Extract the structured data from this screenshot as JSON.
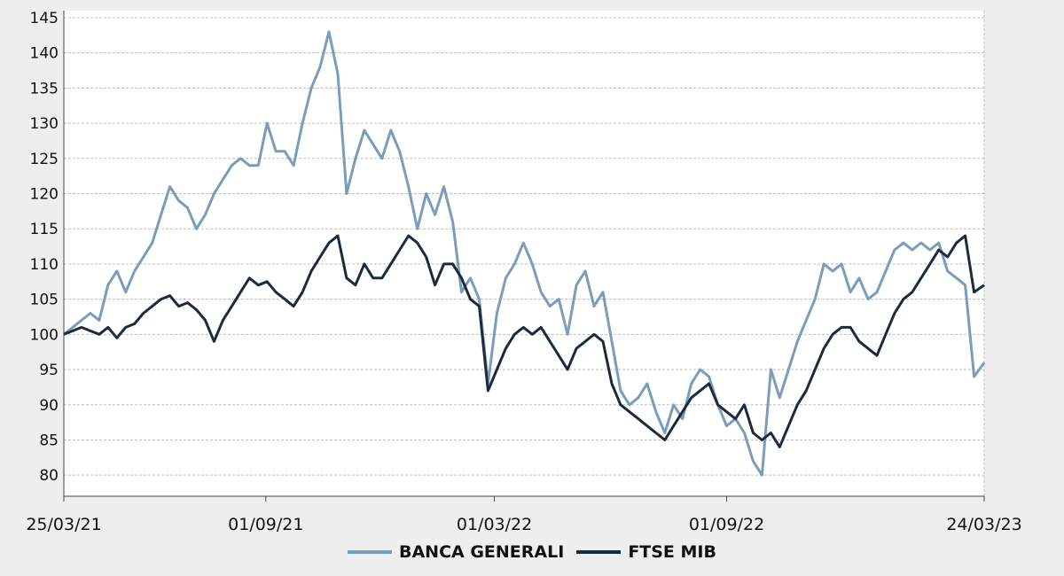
{
  "chart_data": {
    "type": "line",
    "title": "",
    "xlabel": "",
    "ylabel": "",
    "ylim": [
      77,
      146
    ],
    "yticks": [
      80,
      85,
      90,
      95,
      100,
      105,
      110,
      115,
      120,
      125,
      130,
      135,
      140,
      145
    ],
    "xlim": [
      "25/03/21",
      "24/03/23"
    ],
    "xticks": [
      "25/03/21",
      "01/09/21",
      "01/03/22",
      "01/09/22",
      "24/03/23"
    ],
    "grid": true,
    "legend_position": "bottom",
    "series": [
      {
        "name": "BANCA GENERALI",
        "color": "#7b9cba",
        "points": [
          [
            "25/03/21",
            100
          ],
          [
            "01/04/21",
            101
          ],
          [
            "08/04/21",
            102
          ],
          [
            "15/04/21",
            103
          ],
          [
            "22/04/21",
            102
          ],
          [
            "29/04/21",
            107
          ],
          [
            "06/05/21",
            109
          ],
          [
            "13/05/21",
            106
          ],
          [
            "20/05/21",
            109
          ],
          [
            "27/05/21",
            111
          ],
          [
            "03/06/21",
            113
          ],
          [
            "10/06/21",
            117
          ],
          [
            "17/06/21",
            121
          ],
          [
            "24/06/21",
            119
          ],
          [
            "01/07/21",
            118
          ],
          [
            "08/07/21",
            115
          ],
          [
            "15/07/21",
            117
          ],
          [
            "22/07/21",
            120
          ],
          [
            "29/07/21",
            122
          ],
          [
            "05/08/21",
            124
          ],
          [
            "12/08/21",
            125
          ],
          [
            "19/08/21",
            124
          ],
          [
            "26/08/21",
            124
          ],
          [
            "02/09/21",
            130
          ],
          [
            "09/09/21",
            126
          ],
          [
            "16/09/21",
            126
          ],
          [
            "23/09/21",
            124
          ],
          [
            "30/09/21",
            130
          ],
          [
            "07/10/21",
            135
          ],
          [
            "14/10/21",
            138
          ],
          [
            "21/10/21",
            143
          ],
          [
            "28/10/21",
            137
          ],
          [
            "04/11/21",
            120
          ],
          [
            "11/11/21",
            125
          ],
          [
            "18/11/21",
            129
          ],
          [
            "25/11/21",
            127
          ],
          [
            "02/12/21",
            125
          ],
          [
            "09/12/21",
            129
          ],
          [
            "16/12/21",
            126
          ],
          [
            "23/12/21",
            121
          ],
          [
            "30/12/21",
            115
          ],
          [
            "06/01/22",
            120
          ],
          [
            "13/01/22",
            117
          ],
          [
            "20/01/22",
            121
          ],
          [
            "27/01/22",
            116
          ],
          [
            "03/02/22",
            106
          ],
          [
            "10/02/22",
            108
          ],
          [
            "17/02/22",
            105
          ],
          [
            "24/02/22",
            93
          ],
          [
            "03/03/22",
            103
          ],
          [
            "10/03/22",
            108
          ],
          [
            "17/03/22",
            110
          ],
          [
            "24/03/22",
            113
          ],
          [
            "31/03/22",
            110
          ],
          [
            "07/04/22",
            106
          ],
          [
            "14/04/22",
            104
          ],
          [
            "21/04/22",
            105
          ],
          [
            "28/04/22",
            100
          ],
          [
            "05/05/22",
            107
          ],
          [
            "12/05/22",
            109
          ],
          [
            "19/05/22",
            104
          ],
          [
            "26/05/22",
            106
          ],
          [
            "02/06/22",
            99
          ],
          [
            "09/06/22",
            92
          ],
          [
            "16/06/22",
            90
          ],
          [
            "23/06/22",
            91
          ],
          [
            "30/06/22",
            93
          ],
          [
            "07/07/22",
            89
          ],
          [
            "14/07/22",
            86
          ],
          [
            "21/07/22",
            90
          ],
          [
            "28/07/22",
            88
          ],
          [
            "04/08/22",
            93
          ],
          [
            "11/08/22",
            95
          ],
          [
            "18/08/22",
            94
          ],
          [
            "25/08/22",
            90
          ],
          [
            "01/09/22",
            87
          ],
          [
            "08/09/22",
            88
          ],
          [
            "15/09/22",
            86
          ],
          [
            "22/09/22",
            82
          ],
          [
            "29/09/22",
            80
          ],
          [
            "06/10/22",
            95
          ],
          [
            "13/10/22",
            91
          ],
          [
            "20/10/22",
            95
          ],
          [
            "27/10/22",
            99
          ],
          [
            "03/11/22",
            102
          ],
          [
            "10/11/22",
            105
          ],
          [
            "17/11/22",
            110
          ],
          [
            "24/11/22",
            109
          ],
          [
            "01/12/22",
            110
          ],
          [
            "08/12/22",
            106
          ],
          [
            "15/12/22",
            108
          ],
          [
            "22/12/22",
            105
          ],
          [
            "29/12/22",
            106
          ],
          [
            "05/01/23",
            109
          ],
          [
            "12/01/23",
            112
          ],
          [
            "19/01/23",
            113
          ],
          [
            "26/01/23",
            112
          ],
          [
            "02/02/23",
            113
          ],
          [
            "09/02/23",
            112
          ],
          [
            "16/02/23",
            113
          ],
          [
            "23/02/23",
            109
          ],
          [
            "02/03/23",
            108
          ],
          [
            "09/03/23",
            107
          ],
          [
            "16/03/23",
            94
          ],
          [
            "24/03/23",
            96
          ]
        ]
      },
      {
        "name": "FTSE MIB",
        "color": "#1c2b3c",
        "points": [
          [
            "25/03/21",
            100
          ],
          [
            "01/04/21",
            100.5
          ],
          [
            "08/04/21",
            101
          ],
          [
            "15/04/21",
            100.5
          ],
          [
            "22/04/21",
            100
          ],
          [
            "29/04/21",
            101
          ],
          [
            "06/05/21",
            99.5
          ],
          [
            "13/05/21",
            101
          ],
          [
            "20/05/21",
            101.5
          ],
          [
            "27/05/21",
            103
          ],
          [
            "03/06/21",
            104
          ],
          [
            "10/06/21",
            105
          ],
          [
            "17/06/21",
            105.5
          ],
          [
            "24/06/21",
            104
          ],
          [
            "01/07/21",
            104.5
          ],
          [
            "08/07/21",
            103.5
          ],
          [
            "15/07/21",
            102
          ],
          [
            "22/07/21",
            99
          ],
          [
            "29/07/21",
            102
          ],
          [
            "05/08/21",
            104
          ],
          [
            "12/08/21",
            106
          ],
          [
            "19/08/21",
            108
          ],
          [
            "26/08/21",
            107
          ],
          [
            "02/09/21",
            107.5
          ],
          [
            "09/09/21",
            106
          ],
          [
            "16/09/21",
            105
          ],
          [
            "23/09/21",
            104
          ],
          [
            "30/09/21",
            106
          ],
          [
            "07/10/21",
            109
          ],
          [
            "14/10/21",
            111
          ],
          [
            "21/10/21",
            113
          ],
          [
            "28/10/21",
            114
          ],
          [
            "04/11/21",
            108
          ],
          [
            "11/11/21",
            107
          ],
          [
            "18/11/21",
            110
          ],
          [
            "25/11/21",
            108
          ],
          [
            "02/12/21",
            108
          ],
          [
            "09/12/21",
            110
          ],
          [
            "16/12/21",
            112
          ],
          [
            "23/12/21",
            114
          ],
          [
            "30/12/21",
            113
          ],
          [
            "06/01/22",
            111
          ],
          [
            "13/01/22",
            107
          ],
          [
            "20/01/22",
            110
          ],
          [
            "27/01/22",
            110
          ],
          [
            "03/02/22",
            108
          ],
          [
            "10/02/22",
            105
          ],
          [
            "17/02/22",
            104
          ],
          [
            "24/02/22",
            92
          ],
          [
            "03/03/22",
            95
          ],
          [
            "10/03/22",
            98
          ],
          [
            "17/03/22",
            100
          ],
          [
            "24/03/22",
            101
          ],
          [
            "31/03/22",
            100
          ],
          [
            "07/04/22",
            101
          ],
          [
            "14/04/22",
            99
          ],
          [
            "21/04/22",
            97
          ],
          [
            "28/04/22",
            95
          ],
          [
            "05/05/22",
            98
          ],
          [
            "12/05/22",
            99
          ],
          [
            "19/05/22",
            100
          ],
          [
            "26/05/22",
            99
          ],
          [
            "02/06/22",
            93
          ],
          [
            "09/06/22",
            90
          ],
          [
            "16/06/22",
            89
          ],
          [
            "23/06/22",
            88
          ],
          [
            "30/06/22",
            87
          ],
          [
            "07/07/22",
            86
          ],
          [
            "14/07/22",
            85
          ],
          [
            "21/07/22",
            87
          ],
          [
            "28/07/22",
            89
          ],
          [
            "04/08/22",
            91
          ],
          [
            "11/08/22",
            92
          ],
          [
            "18/08/22",
            93
          ],
          [
            "25/08/22",
            90
          ],
          [
            "01/09/22",
            89
          ],
          [
            "08/09/22",
            88
          ],
          [
            "15/09/22",
            90
          ],
          [
            "22/09/22",
            86
          ],
          [
            "29/09/22",
            85
          ],
          [
            "06/10/22",
            86
          ],
          [
            "13/10/22",
            84
          ],
          [
            "20/10/22",
            87
          ],
          [
            "27/10/22",
            90
          ],
          [
            "03/11/22",
            92
          ],
          [
            "10/11/22",
            95
          ],
          [
            "17/11/22",
            98
          ],
          [
            "24/11/22",
            100
          ],
          [
            "01/12/22",
            101
          ],
          [
            "08/12/22",
            101
          ],
          [
            "15/12/22",
            99
          ],
          [
            "22/12/22",
            98
          ],
          [
            "29/12/22",
            97
          ],
          [
            "05/01/23",
            100
          ],
          [
            "12/01/23",
            103
          ],
          [
            "19/01/23",
            105
          ],
          [
            "26/01/23",
            106
          ],
          [
            "02/02/23",
            108
          ],
          [
            "09/02/23",
            110
          ],
          [
            "16/02/23",
            112
          ],
          [
            "23/02/23",
            111
          ],
          [
            "02/03/23",
            113
          ],
          [
            "09/03/23",
            114
          ],
          [
            "16/03/23",
            106
          ],
          [
            "24/03/23",
            107
          ]
        ]
      }
    ]
  }
}
